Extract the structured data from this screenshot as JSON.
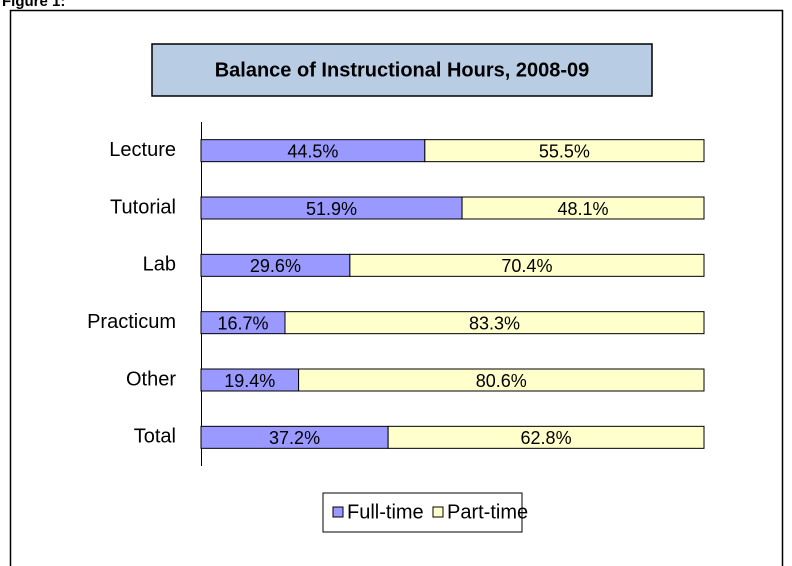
{
  "figure_label": "Figure 1:",
  "chart_data": {
    "type": "bar",
    "orientation": "horizontal",
    "stacked": true,
    "title": "Balance of Instructional Hours, 2008-09",
    "categories": [
      "Lecture",
      "Tutorial",
      "Lab",
      "Practicum",
      "Other",
      "Total"
    ],
    "xlim": [
      0,
      100
    ],
    "series": [
      {
        "name": "Full-time",
        "color": "#9999ff",
        "values": [
          44.5,
          51.9,
          29.6,
          16.7,
          19.4,
          37.2
        ],
        "value_labels": [
          "44.5%",
          "51.9%",
          "29.6%",
          "16.7%",
          "19.4%",
          "37.2%"
        ]
      },
      {
        "name": "Part-time",
        "color": "#ffffcc",
        "values": [
          55.5,
          48.1,
          70.4,
          83.3,
          80.6,
          62.8
        ],
        "value_labels": [
          "55.5%",
          "48.1%",
          "70.4%",
          "83.3%",
          "80.6%",
          "62.8%"
        ]
      }
    ],
    "legend": "bottom"
  }
}
